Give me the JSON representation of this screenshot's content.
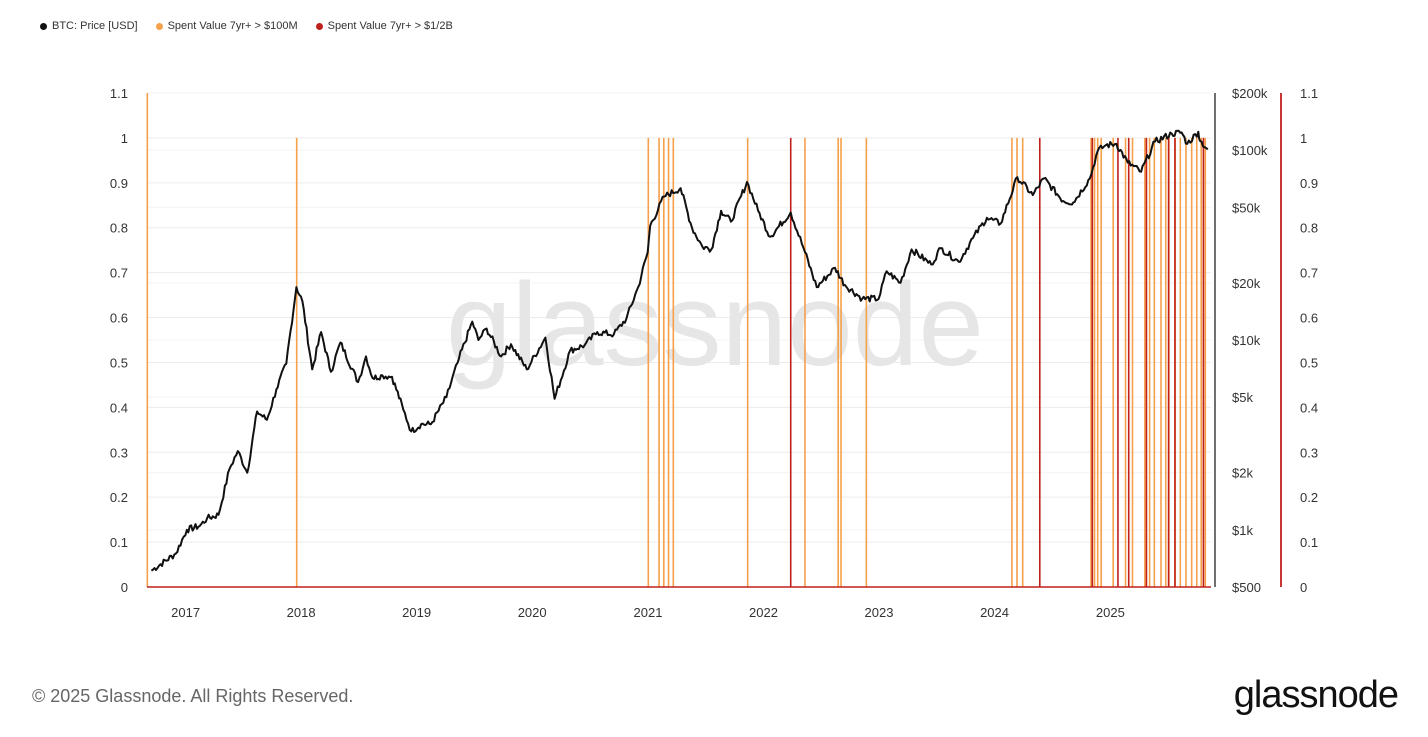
{
  "legend": [
    {
      "label": "BTC: Price [USD]",
      "color": "#111111"
    },
    {
      "label": "Spent Value 7yr+ > $100M",
      "color": "#f5a04a"
    },
    {
      "label": "Spent Value 7yr+ > $1/2B",
      "color": "#c0201c"
    }
  ],
  "watermark": "glassnode",
  "footer": {
    "copyright": "© 2025 Glassnode. All Rights Reserved.",
    "brand": "glassnode"
  },
  "chart_data": {
    "type": "line",
    "x_ticks": [
      "2017",
      "2018",
      "2019",
      "2020",
      "2021",
      "2022",
      "2023",
      "2024",
      "2025"
    ],
    "x_range": [
      "2016-09-01",
      "2025-11-15"
    ],
    "y_left_ticks": [
      "0",
      "0.1",
      "0.2",
      "0.3",
      "0.4",
      "0.5",
      "0.6",
      "0.7",
      "0.8",
      "0.9",
      "1",
      "1.1"
    ],
    "y_left_range": [
      0,
      1.1
    ],
    "y_right_price_ticks": [
      {
        "label": "$500",
        "value": 500
      },
      {
        "label": "$1k",
        "value": 1000
      },
      {
        "label": "$2k",
        "value": 2000
      },
      {
        "label": "$5k",
        "value": 5000
      },
      {
        "label": "$10k",
        "value": 10000
      },
      {
        "label": "$20k",
        "value": 20000
      },
      {
        "label": "$50k",
        "value": 50000
      },
      {
        "label": "$100k",
        "value": 100000
      },
      {
        "label": "$200k",
        "value": 200000
      }
    ],
    "y_right_price_scale": "log",
    "y_right_indicator_ticks": [
      "0",
      "0.1",
      "0.2",
      "0.3",
      "0.4",
      "0.5",
      "0.6",
      "0.7",
      "0.8",
      "0.9",
      "1",
      "1.1"
    ],
    "grid": true,
    "series": [
      {
        "name": "BTC: Price [USD]",
        "color": "#111111",
        "points": [
          [
            "2016-09-15",
            610
          ],
          [
            "2016-12-01",
            750
          ],
          [
            "2017-01-05",
            1000
          ],
          [
            "2017-02-15",
            1050
          ],
          [
            "2017-03-10",
            1150
          ],
          [
            "2017-04-15",
            1200
          ],
          [
            "2017-05-20",
            2100
          ],
          [
            "2017-06-15",
            2600
          ],
          [
            "2017-07-15",
            2000
          ],
          [
            "2017-08-15",
            4200
          ],
          [
            "2017-09-15",
            3800
          ],
          [
            "2017-10-15",
            5500
          ],
          [
            "2017-11-15",
            7500
          ],
          [
            "2017-12-17",
            19000
          ],
          [
            "2018-01-05",
            16000
          ],
          [
            "2018-02-05",
            7000
          ],
          [
            "2018-03-05",
            11000
          ],
          [
            "2018-04-05",
            6800
          ],
          [
            "2018-05-05",
            9700
          ],
          [
            "2018-06-30",
            6000
          ],
          [
            "2018-07-25",
            8200
          ],
          [
            "2018-08-15",
            6300
          ],
          [
            "2018-09-15",
            6500
          ],
          [
            "2018-10-15",
            6400
          ],
          [
            "2018-11-20",
            4300
          ],
          [
            "2018-12-15",
            3300
          ],
          [
            "2019-01-15",
            3600
          ],
          [
            "2019-02-15",
            3600
          ],
          [
            "2019-04-05",
            5000
          ],
          [
            "2019-05-15",
            8000
          ],
          [
            "2019-06-26",
            12500
          ],
          [
            "2019-07-15",
            10000
          ],
          [
            "2019-08-10",
            11500
          ],
          [
            "2019-09-25",
            8200
          ],
          [
            "2019-10-26",
            9500
          ],
          [
            "2019-12-15",
            7000
          ],
          [
            "2020-02-12",
            10300
          ],
          [
            "2020-03-12",
            4900
          ],
          [
            "2020-04-30",
            8800
          ],
          [
            "2020-06-15",
            9400
          ],
          [
            "2020-07-25",
            11000
          ],
          [
            "2020-09-15",
            10700
          ],
          [
            "2020-10-25",
            13000
          ],
          [
            "2020-12-01",
            19000
          ],
          [
            "2020-12-31",
            29000
          ],
          [
            "2021-01-08",
            40000
          ],
          [
            "2021-02-21",
            57000
          ],
          [
            "2021-04-14",
            63000
          ],
          [
            "2021-05-20",
            39000
          ],
          [
            "2021-06-22",
            31000
          ],
          [
            "2021-07-20",
            30000
          ],
          [
            "2021-08-20",
            48000
          ],
          [
            "2021-09-20",
            42000
          ],
          [
            "2021-11-10",
            68000
          ],
          [
            "2021-12-15",
            48000
          ],
          [
            "2022-01-22",
            35000
          ],
          [
            "2022-03-28",
            47000
          ],
          [
            "2022-05-12",
            29000
          ],
          [
            "2022-06-18",
            19000
          ],
          [
            "2022-08-15",
            24000
          ],
          [
            "2022-09-15",
            19500
          ],
          [
            "2022-11-09",
            16500
          ],
          [
            "2022-12-31",
            16500
          ],
          [
            "2023-01-25",
            23000
          ],
          [
            "2023-03-10",
            20000
          ],
          [
            "2023-04-14",
            30000
          ],
          [
            "2023-06-15",
            25000
          ],
          [
            "2023-07-15",
            30500
          ],
          [
            "2023-09-10",
            25800
          ],
          [
            "2023-10-25",
            34500
          ],
          [
            "2023-12-08",
            44000
          ],
          [
            "2024-01-20",
            41000
          ],
          [
            "2024-03-13",
            72000
          ],
          [
            "2024-05-01",
            58000
          ],
          [
            "2024-06-05",
            71000
          ],
          [
            "2024-08-05",
            54000
          ],
          [
            "2024-09-06",
            53000
          ],
          [
            "2024-10-28",
            71000
          ],
          [
            "2024-11-22",
            99000
          ],
          [
            "2024-12-17",
            106000
          ],
          [
            "2025-01-20",
            108000
          ],
          [
            "2025-02-25",
            86000
          ],
          [
            "2025-04-08",
            77000
          ],
          [
            "2025-05-22",
            111000
          ],
          [
            "2025-07-14",
            122000
          ],
          [
            "2025-08-14",
            124000
          ],
          [
            "2025-09-01",
            108000
          ],
          [
            "2025-10-06",
            125000
          ],
          [
            "2025-10-11",
            112000
          ],
          [
            "2025-11-05",
            101000
          ]
        ]
      },
      {
        "name": "Spent Value 7yr+ > $100M",
        "color": "#f5a04a",
        "events": [
          {
            "date": "2016-09-02",
            "value": 1.1
          },
          {
            "date": "2017-12-18",
            "value": 1
          },
          {
            "date": "2021-01-02",
            "value": 1
          },
          {
            "date": "2021-02-05",
            "value": 1
          },
          {
            "date": "2021-02-20",
            "value": 1
          },
          {
            "date": "2021-03-07",
            "value": 1
          },
          {
            "date": "2021-03-22",
            "value": 1
          },
          {
            "date": "2021-11-12",
            "value": 1
          },
          {
            "date": "2022-05-12",
            "value": 1
          },
          {
            "date": "2022-08-25",
            "value": 1
          },
          {
            "date": "2022-09-03",
            "value": 1
          },
          {
            "date": "2022-11-22",
            "value": 1
          },
          {
            "date": "2024-02-25",
            "value": 1
          },
          {
            "date": "2024-03-12",
            "value": 1
          },
          {
            "date": "2024-03-30",
            "value": 1
          },
          {
            "date": "2024-11-01",
            "value": 1
          },
          {
            "date": "2024-11-12",
            "value": 1
          },
          {
            "date": "2024-11-22",
            "value": 1
          },
          {
            "date": "2024-12-03",
            "value": 1
          },
          {
            "date": "2025-01-10",
            "value": 1
          },
          {
            "date": "2025-02-18",
            "value": 1
          },
          {
            "date": "2025-03-12",
            "value": 1
          },
          {
            "date": "2025-04-20",
            "value": 1
          },
          {
            "date": "2025-05-05",
            "value": 1
          },
          {
            "date": "2025-05-20",
            "value": 1
          },
          {
            "date": "2025-06-10",
            "value": 1
          },
          {
            "date": "2025-06-25",
            "value": 1
          },
          {
            "date": "2025-07-05",
            "value": 1
          },
          {
            "date": "2025-07-25",
            "value": 1
          },
          {
            "date": "2025-08-10",
            "value": 1
          },
          {
            "date": "2025-08-28",
            "value": 1
          },
          {
            "date": "2025-09-15",
            "value": 1
          },
          {
            "date": "2025-10-01",
            "value": 1
          },
          {
            "date": "2025-10-15",
            "value": 1
          },
          {
            "date": "2025-10-28",
            "value": 1
          }
        ]
      },
      {
        "name": "Spent Value 7yr+ > $1/2B",
        "color": "#c0201c",
        "events": [
          {
            "date": "2022-03-28",
            "value": 1
          },
          {
            "date": "2024-05-23",
            "value": 1
          },
          {
            "date": "2024-11-05",
            "value": 1
          },
          {
            "date": "2025-01-25",
            "value": 1
          },
          {
            "date": "2025-02-28",
            "value": 1
          },
          {
            "date": "2025-04-25",
            "value": 1
          },
          {
            "date": "2025-07-04",
            "value": 1
          },
          {
            "date": "2025-07-24",
            "value": 1
          },
          {
            "date": "2025-10-22",
            "value": 1
          }
        ]
      }
    ]
  }
}
